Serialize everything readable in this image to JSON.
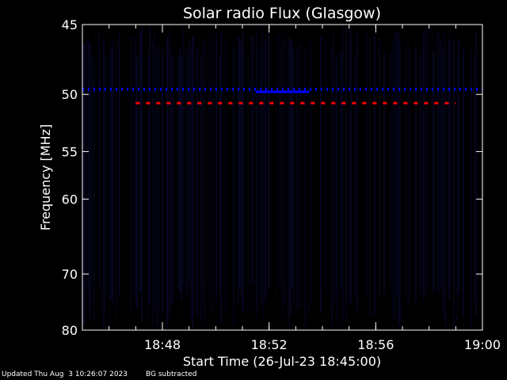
{
  "colors": {
    "background": "#000000",
    "foreground": "#ffffff",
    "noise": "#1a1a8c",
    "strong_emission": "#0000ff",
    "spike": "#ff0000"
  },
  "chart_data": {
    "type": "heatmap",
    "title": "Solar radio Flux (Glasgow)",
    "xlabel": "Start Time (26-Jul-23 18:45:00)",
    "ylabel": "Frequency [MHz]",
    "x_range": [
      "18:45",
      "19:00"
    ],
    "y_range": [
      45,
      80
    ],
    "y_reversed": true,
    "y_ticks": [
      45,
      50,
      55,
      60,
      70,
      80
    ],
    "x_ticks": [
      "18:48",
      "18:52",
      "18:56",
      "19:00"
    ],
    "features": [
      {
        "kind": "dotted-band",
        "frequency_mhz": 49.6,
        "from": "18:45",
        "to": "19:00",
        "color": "#0000ff"
      },
      {
        "kind": "solid-band",
        "frequency_mhz": 49.8,
        "from": "18:51:30",
        "to": "18:53:30",
        "color": "#0000ff"
      },
      {
        "kind": "dashed-band",
        "frequency_mhz": 50.7,
        "from": "18:47",
        "to": "18:59",
        "color": "#ff0000"
      }
    ]
  },
  "footer": {
    "updated": "Updated Thu Aug  3 10:26:07 2023",
    "bg_note": "BG subtracted"
  }
}
